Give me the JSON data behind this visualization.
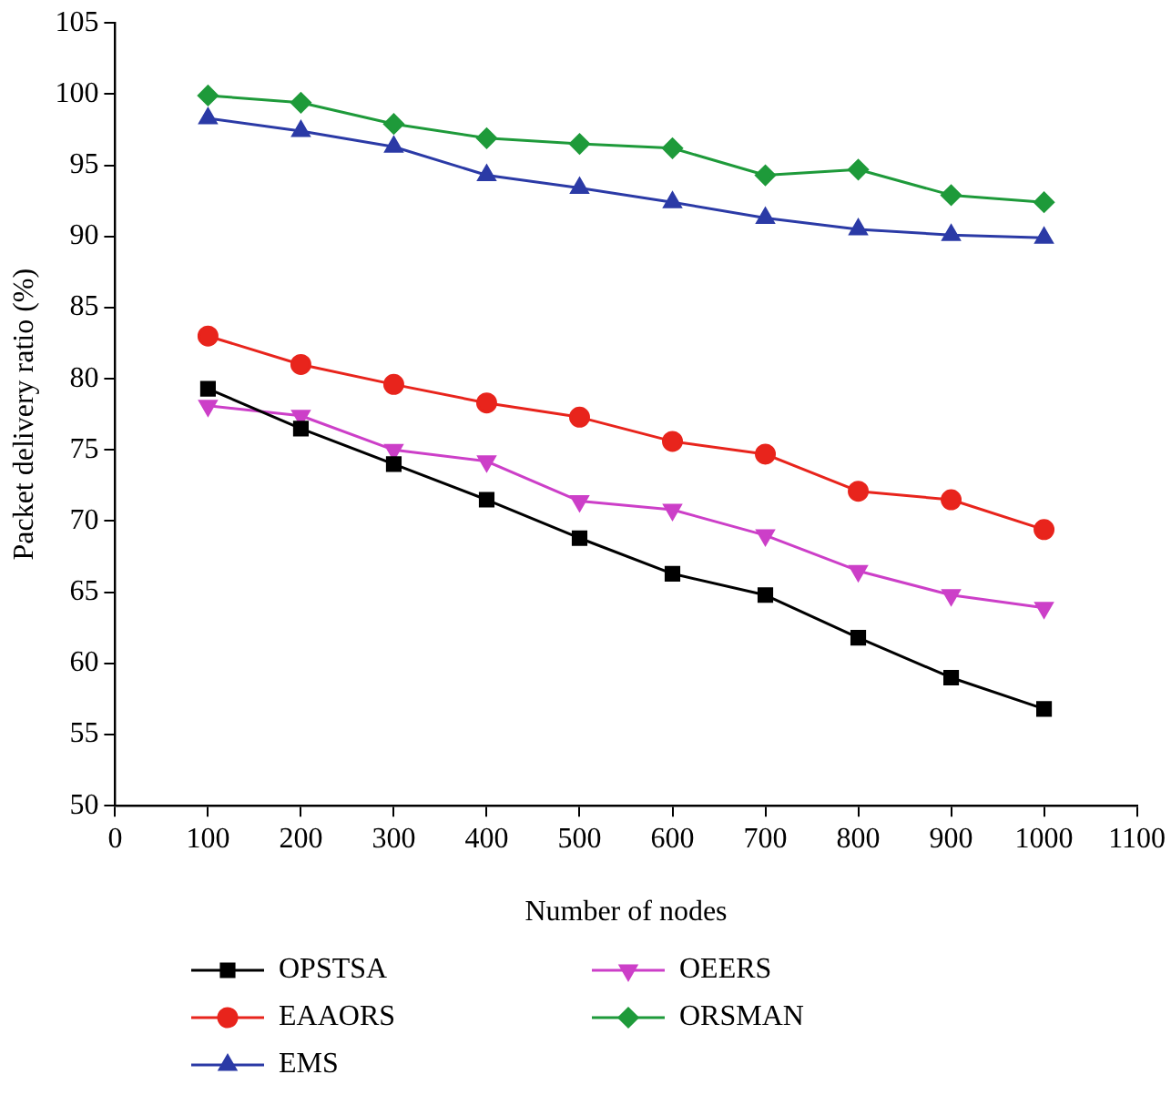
{
  "chart_data": {
    "type": "line",
    "xlabel": "Number of nodes",
    "ylabel": "Packet delivery ratio (%)",
    "x": [
      100,
      200,
      300,
      400,
      500,
      600,
      700,
      800,
      900,
      1000
    ],
    "xlim": [
      0,
      1100
    ],
    "xticks": [
      0,
      100,
      200,
      300,
      400,
      500,
      600,
      700,
      800,
      900,
      1000,
      1100
    ],
    "ylim": [
      50,
      105
    ],
    "yticks": [
      50,
      55,
      60,
      65,
      70,
      75,
      80,
      85,
      90,
      95,
      100,
      105
    ],
    "grid": false,
    "legend": "bottom",
    "line_style": "solid",
    "series": [
      {
        "name": "OPSTSA",
        "color": "#000000",
        "marker": "square",
        "values": [
          79.3,
          76.5,
          74,
          71.5,
          68.8,
          66.3,
          64.8,
          61.8,
          59,
          56.8
        ]
      },
      {
        "name": "EAAORS",
        "color": "#e8241c",
        "marker": "circle",
        "values": [
          83,
          81,
          79.6,
          78.3,
          77.3,
          75.6,
          74.7,
          72.1,
          71.5,
          69.4
        ]
      },
      {
        "name": "EMS",
        "color": "#2b3aa6",
        "marker": "triangle",
        "values": [
          98.3,
          97.4,
          96.3,
          94.3,
          93.4,
          92.4,
          91.3,
          90.5,
          90.1,
          89.9
        ]
      },
      {
        "name": "OEERS",
        "color": "#cc3fc8",
        "marker": "triangle_down",
        "values": [
          78.1,
          77.4,
          75,
          74.2,
          71.4,
          70.8,
          69,
          66.5,
          64.8,
          63.9
        ]
      },
      {
        "name": "ORSMAN",
        "color": "#1e9a3a",
        "marker": "diamond",
        "values": [
          99.9,
          99.4,
          97.9,
          96.9,
          96.5,
          96.2,
          94.3,
          94.7,
          92.9,
          92.4
        ]
      }
    ]
  }
}
